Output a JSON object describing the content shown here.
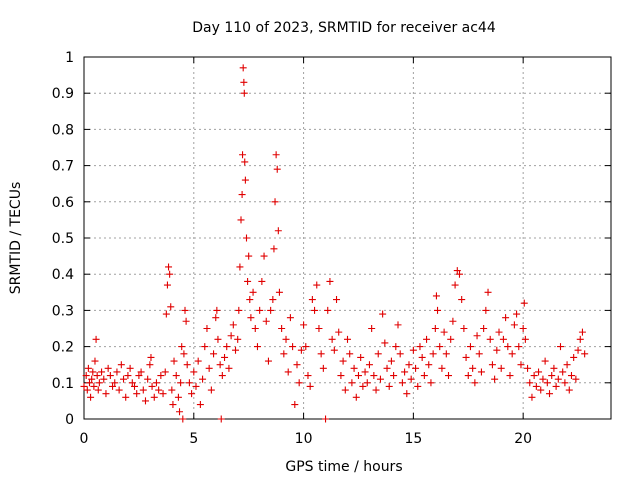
{
  "chart_data": {
    "type": "scatter",
    "title": "Day 110 of 2023, SRMTID for receiver ac44",
    "xlabel": "GPS time / hours",
    "ylabel": "SRMTID / TECUs",
    "xlim": [
      0,
      24
    ],
    "ylim": [
      0,
      1
    ],
    "xticks": [
      0,
      5,
      10,
      15,
      20
    ],
    "yticks": [
      0,
      0.1,
      0.2,
      0.3,
      0.4,
      0.5,
      0.6,
      0.7,
      0.8,
      0.9,
      1
    ],
    "xtick_labels": [
      "0",
      "5",
      "10",
      "15",
      "20"
    ],
    "ytick_labels": [
      "0",
      "0.1",
      "0.2",
      "0.3",
      "0.4",
      "0.5",
      "0.6",
      "0.7",
      "0.8",
      "0.9",
      "1"
    ],
    "grid": true,
    "marker": "+",
    "color": "#e00000",
    "series": [
      {
        "name": "SRMTID",
        "points": [
          [
            0.0,
            0.09
          ],
          [
            0.1,
            0.12
          ],
          [
            0.15,
            0.08
          ],
          [
            0.2,
            0.14
          ],
          [
            0.25,
            0.1
          ],
          [
            0.3,
            0.06
          ],
          [
            0.35,
            0.11
          ],
          [
            0.4,
            0.13
          ],
          [
            0.45,
            0.09
          ],
          [
            0.5,
            0.16
          ],
          [
            0.55,
            0.22
          ],
          [
            0.6,
            0.12
          ],
          [
            0.65,
            0.08
          ],
          [
            0.7,
            0.1
          ],
          [
            0.8,
            0.13
          ],
          [
            0.9,
            0.11
          ],
          [
            1.0,
            0.07
          ],
          [
            1.1,
            0.14
          ],
          [
            1.2,
            0.12
          ],
          [
            1.3,
            0.09
          ],
          [
            1.4,
            0.1
          ],
          [
            1.5,
            0.13
          ],
          [
            1.6,
            0.08
          ],
          [
            1.7,
            0.15
          ],
          [
            1.8,
            0.11
          ],
          [
            1.9,
            0.06
          ],
          [
            2.0,
            0.12
          ],
          [
            2.1,
            0.14
          ],
          [
            2.2,
            0.1
          ],
          [
            2.3,
            0.09
          ],
          [
            2.4,
            0.07
          ],
          [
            2.5,
            0.12
          ],
          [
            2.6,
            0.13
          ],
          [
            2.7,
            0.08
          ],
          [
            2.8,
            0.05
          ],
          [
            2.9,
            0.11
          ],
          [
            3.0,
            0.15
          ],
          [
            3.05,
            0.17
          ],
          [
            3.1,
            0.09
          ],
          [
            3.2,
            0.06
          ],
          [
            3.3,
            0.1
          ],
          [
            3.4,
            0.08
          ],
          [
            3.5,
            0.12
          ],
          [
            3.6,
            0.07
          ],
          [
            3.7,
            0.13
          ],
          [
            3.75,
            0.29
          ],
          [
            3.8,
            0.37
          ],
          [
            3.85,
            0.42
          ],
          [
            3.9,
            0.4
          ],
          [
            3.95,
            0.31
          ],
          [
            4.0,
            0.08
          ],
          [
            4.05,
            0.04
          ],
          [
            4.1,
            0.16
          ],
          [
            4.2,
            0.12
          ],
          [
            4.3,
            0.06
          ],
          [
            4.35,
            0.02
          ],
          [
            4.4,
            0.1
          ],
          [
            4.45,
            0.2
          ],
          [
            4.5,
            0.0
          ],
          [
            4.55,
            0.18
          ],
          [
            4.6,
            0.3
          ],
          [
            4.65,
            0.27
          ],
          [
            4.7,
            0.15
          ],
          [
            4.8,
            0.1
          ],
          [
            4.9,
            0.07
          ],
          [
            5.0,
            0.13
          ],
          [
            5.1,
            0.09
          ],
          [
            5.2,
            0.16
          ],
          [
            5.3,
            0.04
          ],
          [
            5.4,
            0.11
          ],
          [
            5.5,
            0.2
          ],
          [
            5.6,
            0.25
          ],
          [
            5.7,
            0.14
          ],
          [
            5.8,
            0.08
          ],
          [
            5.9,
            0.18
          ],
          [
            6.0,
            0.28
          ],
          [
            6.05,
            0.3
          ],
          [
            6.1,
            0.22
          ],
          [
            6.2,
            0.15
          ],
          [
            6.25,
            0.0
          ],
          [
            6.3,
            0.12
          ],
          [
            6.4,
            0.17
          ],
          [
            6.5,
            0.2
          ],
          [
            6.6,
            0.14
          ],
          [
            6.7,
            0.23
          ],
          [
            6.8,
            0.26
          ],
          [
            6.9,
            0.19
          ],
          [
            7.0,
            0.22
          ],
          [
            7.05,
            0.3
          ],
          [
            7.1,
            0.42
          ],
          [
            7.15,
            0.55
          ],
          [
            7.2,
            0.62
          ],
          [
            7.22,
            0.73
          ],
          [
            7.25,
            0.97
          ],
          [
            7.28,
            0.93
          ],
          [
            7.3,
            0.9
          ],
          [
            7.32,
            0.71
          ],
          [
            7.35,
            0.66
          ],
          [
            7.4,
            0.5
          ],
          [
            7.45,
            0.38
          ],
          [
            7.5,
            0.45
          ],
          [
            7.55,
            0.33
          ],
          [
            7.6,
            0.28
          ],
          [
            7.7,
            0.35
          ],
          [
            7.8,
            0.25
          ],
          [
            7.9,
            0.2
          ],
          [
            8.0,
            0.3
          ],
          [
            8.1,
            0.38
          ],
          [
            8.2,
            0.45
          ],
          [
            8.3,
            0.27
          ],
          [
            8.4,
            0.16
          ],
          [
            8.5,
            0.3
          ],
          [
            8.6,
            0.33
          ],
          [
            8.65,
            0.47
          ],
          [
            8.7,
            0.6
          ],
          [
            8.75,
            0.73
          ],
          [
            8.8,
            0.69
          ],
          [
            8.85,
            0.52
          ],
          [
            8.9,
            0.35
          ],
          [
            9.0,
            0.25
          ],
          [
            9.1,
            0.18
          ],
          [
            9.2,
            0.22
          ],
          [
            9.3,
            0.13
          ],
          [
            9.4,
            0.28
          ],
          [
            9.5,
            0.2
          ],
          [
            9.6,
            0.04
          ],
          [
            9.7,
            0.15
          ],
          [
            9.8,
            0.1
          ],
          [
            9.9,
            0.19
          ],
          [
            10.0,
            0.26
          ],
          [
            10.1,
            0.2
          ],
          [
            10.2,
            0.12
          ],
          [
            10.3,
            0.09
          ],
          [
            10.4,
            0.33
          ],
          [
            10.5,
            0.3
          ],
          [
            10.6,
            0.37
          ],
          [
            10.7,
            0.25
          ],
          [
            10.8,
            0.18
          ],
          [
            10.9,
            0.14
          ],
          [
            11.0,
            0.0
          ],
          [
            11.1,
            0.3
          ],
          [
            11.2,
            0.38
          ],
          [
            11.3,
            0.22
          ],
          [
            11.4,
            0.19
          ],
          [
            11.5,
            0.33
          ],
          [
            11.6,
            0.24
          ],
          [
            11.7,
            0.12
          ],
          [
            11.8,
            0.16
          ],
          [
            11.9,
            0.08
          ],
          [
            12.0,
            0.22
          ],
          [
            12.1,
            0.18
          ],
          [
            12.2,
            0.1
          ],
          [
            12.3,
            0.14
          ],
          [
            12.4,
            0.06
          ],
          [
            12.5,
            0.12
          ],
          [
            12.6,
            0.17
          ],
          [
            12.7,
            0.09
          ],
          [
            12.8,
            0.13
          ],
          [
            12.9,
            0.1
          ],
          [
            13.0,
            0.15
          ],
          [
            13.1,
            0.25
          ],
          [
            13.2,
            0.12
          ],
          [
            13.3,
            0.08
          ],
          [
            13.4,
            0.18
          ],
          [
            13.5,
            0.11
          ],
          [
            13.6,
            0.29
          ],
          [
            13.7,
            0.21
          ],
          [
            13.8,
            0.14
          ],
          [
            13.9,
            0.09
          ],
          [
            14.0,
            0.16
          ],
          [
            14.1,
            0.12
          ],
          [
            14.2,
            0.2
          ],
          [
            14.3,
            0.26
          ],
          [
            14.4,
            0.18
          ],
          [
            14.5,
            0.1
          ],
          [
            14.6,
            0.13
          ],
          [
            14.7,
            0.07
          ],
          [
            14.8,
            0.15
          ],
          [
            14.9,
            0.11
          ],
          [
            15.0,
            0.19
          ],
          [
            15.1,
            0.14
          ],
          [
            15.2,
            0.09
          ],
          [
            15.3,
            0.2
          ],
          [
            15.4,
            0.17
          ],
          [
            15.5,
            0.12
          ],
          [
            15.6,
            0.22
          ],
          [
            15.7,
            0.15
          ],
          [
            15.8,
            0.1
          ],
          [
            15.9,
            0.18
          ],
          [
            16.0,
            0.25
          ],
          [
            16.05,
            0.34
          ],
          [
            16.1,
            0.3
          ],
          [
            16.2,
            0.2
          ],
          [
            16.3,
            0.14
          ],
          [
            16.4,
            0.24
          ],
          [
            16.5,
            0.18
          ],
          [
            16.6,
            0.12
          ],
          [
            16.7,
            0.22
          ],
          [
            16.8,
            0.27
          ],
          [
            16.9,
            0.37
          ],
          [
            17.0,
            0.41
          ],
          [
            17.1,
            0.4
          ],
          [
            17.2,
            0.33
          ],
          [
            17.3,
            0.25
          ],
          [
            17.4,
            0.17
          ],
          [
            17.5,
            0.12
          ],
          [
            17.6,
            0.2
          ],
          [
            17.7,
            0.14
          ],
          [
            17.8,
            0.1
          ],
          [
            17.9,
            0.23
          ],
          [
            18.0,
            0.18
          ],
          [
            18.1,
            0.13
          ],
          [
            18.2,
            0.25
          ],
          [
            18.3,
            0.3
          ],
          [
            18.4,
            0.35
          ],
          [
            18.5,
            0.22
          ],
          [
            18.6,
            0.15
          ],
          [
            18.7,
            0.11
          ],
          [
            18.8,
            0.19
          ],
          [
            18.9,
            0.24
          ],
          [
            19.0,
            0.14
          ],
          [
            19.1,
            0.22
          ],
          [
            19.2,
            0.28
          ],
          [
            19.3,
            0.2
          ],
          [
            19.4,
            0.12
          ],
          [
            19.5,
            0.18
          ],
          [
            19.6,
            0.26
          ],
          [
            19.7,
            0.29
          ],
          [
            19.8,
            0.2
          ],
          [
            19.9,
            0.15
          ],
          [
            20.0,
            0.25
          ],
          [
            20.05,
            0.32
          ],
          [
            20.1,
            0.22
          ],
          [
            20.2,
            0.14
          ],
          [
            20.3,
            0.1
          ],
          [
            20.4,
            0.06
          ],
          [
            20.5,
            0.12
          ],
          [
            20.6,
            0.09
          ],
          [
            20.7,
            0.13
          ],
          [
            20.8,
            0.08
          ],
          [
            20.9,
            0.11
          ],
          [
            21.0,
            0.16
          ],
          [
            21.1,
            0.1
          ],
          [
            21.2,
            0.07
          ],
          [
            21.3,
            0.12
          ],
          [
            21.4,
            0.14
          ],
          [
            21.5,
            0.09
          ],
          [
            21.6,
            0.11
          ],
          [
            21.7,
            0.2
          ],
          [
            21.8,
            0.13
          ],
          [
            21.9,
            0.1
          ],
          [
            22.0,
            0.15
          ],
          [
            22.1,
            0.08
          ],
          [
            22.2,
            0.12
          ],
          [
            22.3,
            0.17
          ],
          [
            22.4,
            0.11
          ],
          [
            22.5,
            0.19
          ],
          [
            22.6,
            0.22
          ],
          [
            22.7,
            0.24
          ],
          [
            22.8,
            0.18
          ]
        ]
      }
    ]
  }
}
